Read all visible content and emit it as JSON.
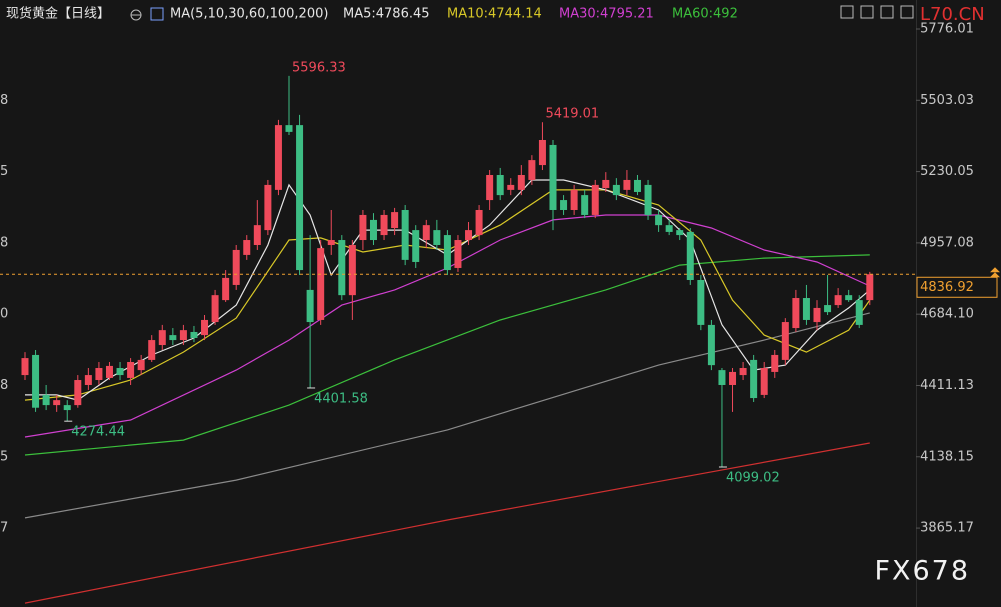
{
  "chart_data": {
    "type": "candlestick",
    "title": "现货黄金【日线】",
    "indicator": "MA(5,10,30,60,100,200)",
    "source_mark": "L70.CN",
    "watermark": "FX678",
    "up_color": "#ef4a5b",
    "down_color": "#3dbd84",
    "ylim": [
      3563,
      5887
    ],
    "yticks": [
      5776.01,
      5503.03,
      5230.05,
      4957.08,
      {
        "value": 4684.1,
        "label": "4684.10"
      },
      4411.13,
      4138.15,
      3865.17
    ],
    "grid": false,
    "left_axis_fragments": [
      "8",
      "5",
      "8",
      "0",
      "8",
      "5",
      "7"
    ],
    "open": [
      4451,
      4528,
      4375,
      4336,
      4336,
      4336,
      4413,
      4432,
      4440,
      4478,
      4440,
      4470,
      4509,
      4566,
      4604,
      4585,
      4616,
      4604,
      4654,
      4738,
      4796,
      4911,
      4949,
      5006,
      5160,
      5408,
      5408,
      4777,
      4662,
      4949,
      4968,
      4757,
      4968,
      5045,
      4987,
      5014,
      5083,
      5006,
      4968,
      5006,
      4987,
      4861,
      4968,
      4987,
      5121,
      5217,
      5160,
      5160,
      5198,
      5255,
      5332,
      5121,
      5083,
      5140,
      5064,
      5167,
      5179,
      5160,
      5198,
      5179,
      5064,
      5025,
      5006,
      4999,
      4815,
      4643,
      4470,
      4413,
      4451,
      4509,
      4375,
      4463,
      4509,
      4631,
      4746,
      4654,
      4719,
      4719,
      4757,
      4738,
      4738
    ],
    "high": [
      4539,
      4547,
      4413,
      4375,
      4355,
      4451,
      4478,
      4501,
      4501,
      4501,
      4516,
      4528,
      4604,
      4643,
      4631,
      4643,
      4639,
      4681,
      4777,
      4853,
      4949,
      4987,
      5121,
      5198,
      5428,
      5596.33,
      5447,
      4987,
      4968,
      5083,
      4987,
      4968,
      5083,
      5071,
      5083,
      5091,
      5102,
      5025,
      5045,
      5045,
      5006,
      4987,
      5037,
      5102,
      5236,
      5244,
      5205,
      5255,
      5293,
      5419.01,
      5351,
      5140,
      5179,
      5160,
      5198,
      5228,
      5205,
      5236,
      5217,
      5198,
      5083,
      5045,
      5014,
      5014,
      4834,
      4662,
      4478,
      4478,
      4501,
      4528,
      4501,
      4547,
      4669,
      4777,
      4796,
      4738,
      4834,
      4784,
      4777,
      4757,
      4846
    ],
    "low": [
      4432,
      4310,
      4317,
      4310,
      4274.44,
      4326,
      4394,
      4413,
      4432,
      4432,
      4413,
      4451,
      4501,
      4547,
      4566,
      4566,
      4577,
      4585,
      4643,
      4731,
      4777,
      4892,
      4930,
      4987,
      5140,
      5370,
      4834,
      4401.58,
      4643,
      4911,
      4738,
      4662,
      4930,
      4949,
      4968,
      4987,
      4872,
      4861,
      4937,
      4930,
      4834,
      4846,
      4949,
      4968,
      5083,
      5121,
      5140,
      5140,
      5179,
      5236,
      5006,
      5064,
      5064,
      5052,
      5052,
      5152,
      5121,
      5140,
      5140,
      5045,
      4999,
      4987,
      4968,
      4796,
      4623,
      4470,
      4099.02,
      4310,
      4432,
      4348,
      4363,
      4440,
      4489,
      4616,
      4643,
      4623,
      4681,
      4708,
      4731,
      4631,
      4719
    ],
    "close": [
      4516,
      4326,
      4336,
      4355,
      4317,
      4432,
      4451,
      4478,
      4486,
      4451,
      4501,
      4509,
      4585,
      4623,
      4585,
      4623,
      4593,
      4662,
      4757,
      4823,
      4930,
      4968,
      5025,
      5179,
      5408,
      5382,
      4853,
      4654,
      4937,
      4968,
      4757,
      4949,
      5064,
      4968,
      5064,
      5075,
      4892,
      4884,
      5025,
      4949,
      4853,
      4968,
      5006,
      5083,
      5217,
      5140,
      5179,
      5217,
      5274,
      5351,
      5083,
      5083,
      5160,
      5064,
      5179,
      5198,
      5140,
      5198,
      5152,
      5064,
      5025,
      4999,
      4987,
      4815,
      4643,
      4489,
      4413,
      4463,
      4478,
      4363,
      4478,
      4528,
      4654,
      4746,
      4662,
      4708,
      4692,
      4757,
      4738,
      4643,
      4836.92
    ],
    "high_labels": {
      "25": "5596.33",
      "49": "5419.01"
    },
    "low_labels": {
      "4": "4274.44",
      "27": "4401.58",
      "66": "4099.02"
    },
    "high_label_color": "#ef4a5b",
    "low_label_color": "#3dbd84",
    "last_price_color": "#f0a030",
    "series": [
      {
        "color": "#d03030",
        "x": [
          0,
          40,
          80
        ],
        "values": [
          3578,
          3896,
          4191
        ]
      },
      {
        "color": "#8a8a8a",
        "x": [
          0,
          20,
          40,
          60,
          70,
          80
        ],
        "values": [
          3904,
          4049,
          4241,
          4489,
          4585,
          4689
        ]
      },
      {
        "name": "MA60:492",
        "color": "#3cc03c",
        "x": [
          0,
          15,
          25,
          35,
          45,
          55,
          62,
          70,
          80
        ],
        "values": [
          4145,
          4202,
          4336,
          4509,
          4662,
          4777,
          4872,
          4899,
          4911
        ]
      },
      {
        "name": "MA30:4795.21",
        "color": "#d040d0",
        "x": [
          0,
          10,
          20,
          25,
          30,
          35,
          40,
          45,
          50,
          55,
          60,
          65,
          70,
          75,
          80
        ],
        "values": [
          4214,
          4279,
          4470,
          4585,
          4719,
          4777,
          4861,
          4968,
          5045,
          5064,
          5064,
          5014,
          4930,
          4884,
          4792
        ]
      },
      {
        "name": "MA10:4744.14",
        "color": "#d8c828",
        "x": [
          0,
          5,
          10,
          15,
          20,
          25,
          28,
          32,
          36,
          40,
          45,
          50,
          55,
          60,
          64,
          67,
          70,
          74,
          78,
          80
        ],
        "values": [
          4355,
          4375,
          4432,
          4539,
          4669,
          4968,
          4976,
          4922,
          4949,
          4930,
          5025,
          5160,
          5160,
          5102,
          4968,
          4738,
          4604,
          4539,
          4623,
          4738
        ]
      },
      {
        "name": "MA5:4786.45",
        "color": "#e6e6e6",
        "x": [
          0,
          3,
          5,
          8,
          12,
          16,
          20,
          23,
          25,
          27,
          29,
          32,
          36,
          40,
          44,
          48,
          51,
          55,
          60,
          63,
          66,
          69,
          72,
          75,
          78,
          80
        ],
        "values": [
          4375,
          4375,
          4355,
          4440,
          4528,
          4593,
          4719,
          4949,
          5179,
          5064,
          4834,
          5006,
          5006,
          4911,
          5025,
          5198,
          5198,
          5160,
          5083,
          4968,
          4643,
          4470,
          4489,
          4623,
          4708,
          4777
        ]
      }
    ]
  }
}
